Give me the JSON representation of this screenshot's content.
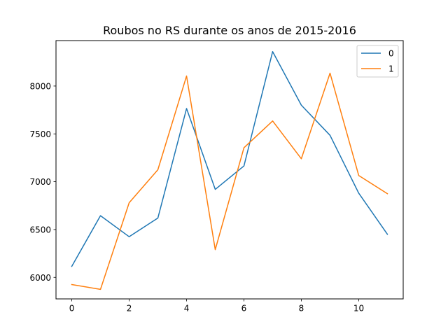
{
  "chart_data": {
    "type": "line",
    "title": "Roubos no RS durante os anos de 2015-2016",
    "xlabel": "",
    "ylabel": "",
    "x": [
      0,
      1,
      2,
      3,
      4,
      5,
      6,
      7,
      8,
      9,
      10,
      11
    ],
    "xlim": [
      -0.55,
      11.55
    ],
    "ylim": [
      5775,
      8475
    ],
    "x_ticks": [
      0,
      2,
      4,
      6,
      8,
      10
    ],
    "y_ticks": [
      6000,
      6500,
      7000,
      7500,
      8000
    ],
    "grid": false,
    "legend_position": "top-right",
    "series": [
      {
        "name": "0",
        "color": "#1f77b4",
        "values": [
          6115,
          6645,
          6425,
          6620,
          7765,
          6920,
          7165,
          8360,
          7800,
          7485,
          6880,
          6450
        ]
      },
      {
        "name": "1",
        "color": "#ff7f0e",
        "values": [
          5925,
          5875,
          6780,
          7125,
          8105,
          6290,
          7355,
          7635,
          7240,
          8135,
          7065,
          6875
        ]
      }
    ]
  }
}
